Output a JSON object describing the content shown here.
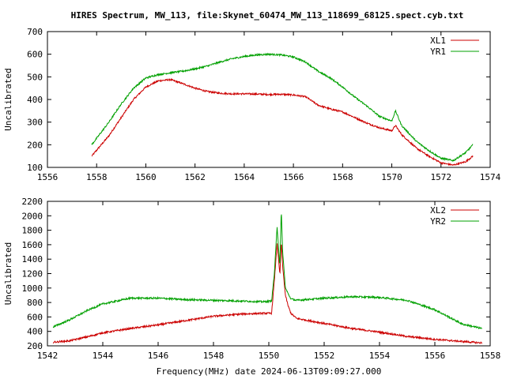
{
  "title": "HIRES Spectrum, MW_113, file:Skynet_60474_MW_113_118699_68125.spect.cyb.txt",
  "xlabel": "Frequency(MHz) date 2024-06-13T09:09:27.000",
  "chart_data": [
    {
      "type": "line",
      "ylabel": "Uncalibrated",
      "xlim": [
        1556,
        1574
      ],
      "ylim": [
        100,
        700
      ],
      "x_ticks": [
        1556,
        1558,
        1560,
        1562,
        1564,
        1566,
        1568,
        1570,
        1572,
        1574
      ],
      "y_ticks": [
        100,
        200,
        300,
        400,
        500,
        600,
        700
      ],
      "legend_position": "top-right",
      "grid": false,
      "series": [
        {
          "name": "XL1",
          "color": "#cc0000",
          "x": [
            1557.8,
            1558.5,
            1559.0,
            1559.5,
            1560.0,
            1560.5,
            1561.0,
            1561.5,
            1562.0,
            1562.5,
            1563.0,
            1563.5,
            1564.0,
            1564.5,
            1565.0,
            1565.5,
            1566.0,
            1566.5,
            1567.0,
            1567.5,
            1568.0,
            1568.5,
            1569.0,
            1569.5,
            1570.0,
            1570.15,
            1570.4,
            1571.0,
            1571.5,
            1572.0,
            1572.5,
            1573.0,
            1573.3
          ],
          "y": [
            150,
            240,
            320,
            400,
            455,
            482,
            488,
            470,
            450,
            435,
            428,
            425,
            425,
            424,
            422,
            423,
            420,
            412,
            375,
            358,
            345,
            320,
            295,
            275,
            262,
            285,
            245,
            185,
            150,
            120,
            110,
            125,
            150
          ]
        },
        {
          "name": "YR1",
          "color": "#00a000",
          "x": [
            1557.8,
            1558.5,
            1559.0,
            1559.5,
            1560.0,
            1560.5,
            1561.0,
            1561.5,
            1562.0,
            1562.5,
            1563.0,
            1563.5,
            1564.0,
            1564.5,
            1565.0,
            1565.5,
            1566.0,
            1566.5,
            1567.0,
            1567.5,
            1568.0,
            1568.5,
            1569.0,
            1569.5,
            1570.0,
            1570.15,
            1570.4,
            1571.0,
            1571.5,
            1572.0,
            1572.5,
            1573.0,
            1573.3
          ],
          "y": [
            200,
            300,
            380,
            450,
            495,
            510,
            518,
            525,
            535,
            548,
            565,
            580,
            590,
            597,
            600,
            597,
            588,
            565,
            525,
            495,
            455,
            410,
            370,
            325,
            305,
            350,
            285,
            215,
            175,
            140,
            130,
            165,
            200
          ]
        }
      ]
    },
    {
      "type": "line",
      "ylabel": "Uncalibrated",
      "xlim": [
        1542,
        1558
      ],
      "ylim": [
        200,
        2200
      ],
      "x_ticks": [
        1542,
        1544,
        1546,
        1548,
        1550,
        1552,
        1554,
        1556,
        1558
      ],
      "y_ticks": [
        200,
        400,
        600,
        800,
        1000,
        1200,
        1400,
        1600,
        1800,
        2000,
        2200
      ],
      "legend_position": "top-right",
      "grid": false,
      "series": [
        {
          "name": "XL2",
          "color": "#cc0000",
          "x": [
            1542.2,
            1542.8,
            1543.5,
            1544.0,
            1545.0,
            1546.0,
            1547.0,
            1548.0,
            1549.0,
            1549.8,
            1550.1,
            1550.2,
            1550.3,
            1550.4,
            1550.45,
            1550.5,
            1550.6,
            1550.7,
            1550.8,
            1551.0,
            1552.0,
            1553.0,
            1554.0,
            1555.0,
            1556.0,
            1557.0,
            1557.7
          ],
          "y": [
            250,
            270,
            330,
            380,
            440,
            490,
            550,
            610,
            640,
            650,
            650,
            1100,
            1620,
            1180,
            1650,
            1300,
            900,
            750,
            650,
            580,
            510,
            440,
            390,
            330,
            290,
            260,
            240
          ]
        },
        {
          "name": "YR2",
          "color": "#00a000",
          "x": [
            1542.2,
            1542.8,
            1543.5,
            1544.0,
            1545.0,
            1546.0,
            1547.0,
            1548.0,
            1549.0,
            1549.8,
            1550.1,
            1550.2,
            1550.3,
            1550.4,
            1550.45,
            1550.5,
            1550.6,
            1550.7,
            1550.8,
            1551.0,
            1552.0,
            1553.0,
            1554.0,
            1555.0,
            1556.0,
            1557.0,
            1557.7
          ],
          "y": [
            460,
            560,
            700,
            780,
            860,
            860,
            840,
            830,
            820,
            810,
            820,
            1200,
            1850,
            1300,
            2080,
            1500,
            1000,
            920,
            850,
            830,
            860,
            880,
            870,
            830,
            700,
            500,
            440
          ]
        }
      ]
    }
  ]
}
